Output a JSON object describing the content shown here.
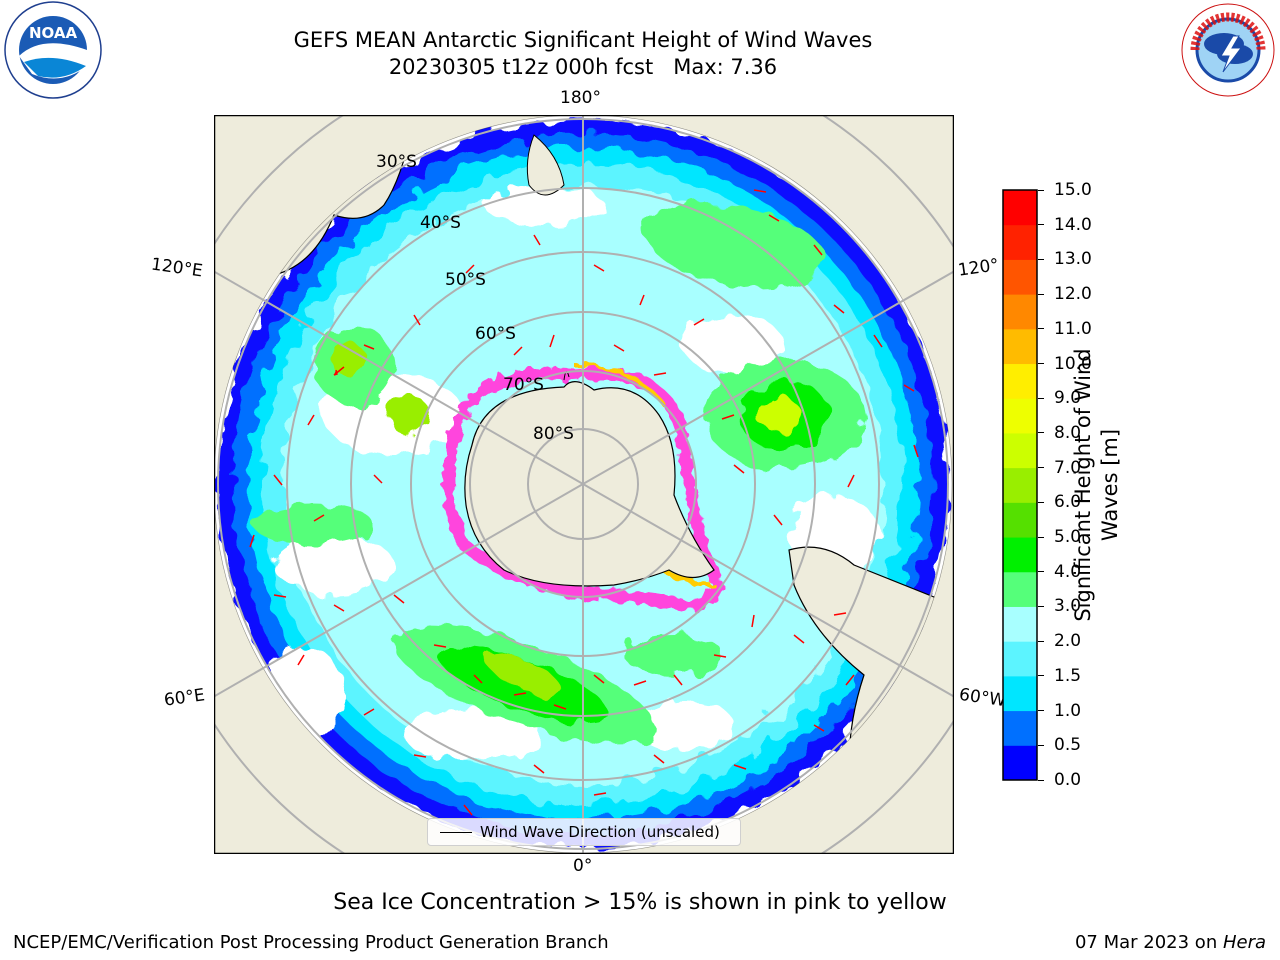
{
  "header": {
    "title_line1": "GEFS MEAN Antarctic Significant Height of Wind Waves",
    "title_line2": "20230305 t12z 000h fcst   Max: 7.36"
  },
  "logos": {
    "left": {
      "name": "noaa-logo",
      "text": "NOAA",
      "ring_text": "NATIONAL OCEANIC AND ATMOSPHERIC ADMINISTRATION · U.S. DEPARTMENT OF COMMERCE"
    },
    "right": {
      "name": "nws-logo",
      "ring_text": "NATIONAL WEATHER SERVICE"
    }
  },
  "map": {
    "projection": "south-polar-stereographic",
    "lon_labels": {
      "top": "180°",
      "bottom": "0°",
      "upper_left": "120°E",
      "upper_right": "120°",
      "lower_left": "60°E",
      "lower_right": "60°W"
    },
    "lat_labels": [
      "30°S",
      "40°S",
      "50°S",
      "60°S",
      "70°S",
      "80°S"
    ],
    "legend_label": "Wind Wave Direction (unscaled)",
    "colors": {
      "land": "#eeecdc",
      "ocean_open": "#ffffff",
      "graticule": "#b0b0b0",
      "arrow": "#ff0000",
      "sea_ice": "#ff44dd"
    }
  },
  "colorbar": {
    "label": "Significant Height of Wind Waves [m]",
    "label_line1": "Significant Height of Wind",
    "label_line2": "Waves [m]",
    "ticks": [
      "0.0",
      "0.5",
      "1.0",
      "1.5",
      "2.0",
      "3.0",
      "4.0",
      "5.0",
      "6.0",
      "7.0",
      "8.0",
      "9.0",
      "10.0",
      "11.0",
      "12.0",
      "13.0",
      "14.0",
      "15.0"
    ],
    "colors": [
      "#0000ff",
      "#0070ff",
      "#00e6ff",
      "#5cf4ff",
      "#a8ffff",
      "#55ff7a",
      "#00f000",
      "#55e000",
      "#99ee00",
      "#ccff00",
      "#eeff00",
      "#ffee00",
      "#ffbb00",
      "#ff8800",
      "#ff5500",
      "#ff2200",
      "#ff0000"
    ]
  },
  "caption": "Sea Ice Concentration > 15% is shown in pink to yellow",
  "footer": {
    "left": "NCEP/EMC/Verification Post Processing Product Generation Branch",
    "right_prefix": "07 Mar 2023 on ",
    "right_machine": "Hera"
  }
}
